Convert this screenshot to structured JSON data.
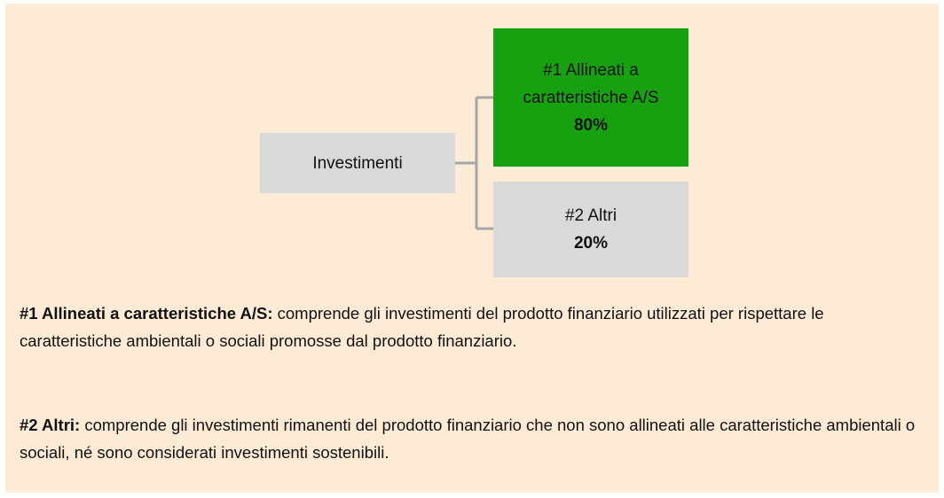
{
  "nodes": [
    {
      "label": "Investimenti"
    },
    {
      "label": "#1 Allineati a caratteristiche A/S",
      "value": "80%"
    },
    {
      "label": "#2 Altri",
      "value": "20%"
    }
  ],
  "notes": [
    {
      "term": "#1 Allineati a caratteristiche A/S:",
      "text": "comprende gli investimenti del prodotto finanziario utilizzati per rispettare le caratteristiche ambientali o sociali promosse dal prodotto finanziario."
    },
    {
      "term": "#2 Altri:",
      "text": "comprende gli investimenti rimanenti del prodotto finanziario che non sono allineati alle caratteristiche ambientali o sociali, né sono considerati investimenti sostenibili."
    }
  ]
}
